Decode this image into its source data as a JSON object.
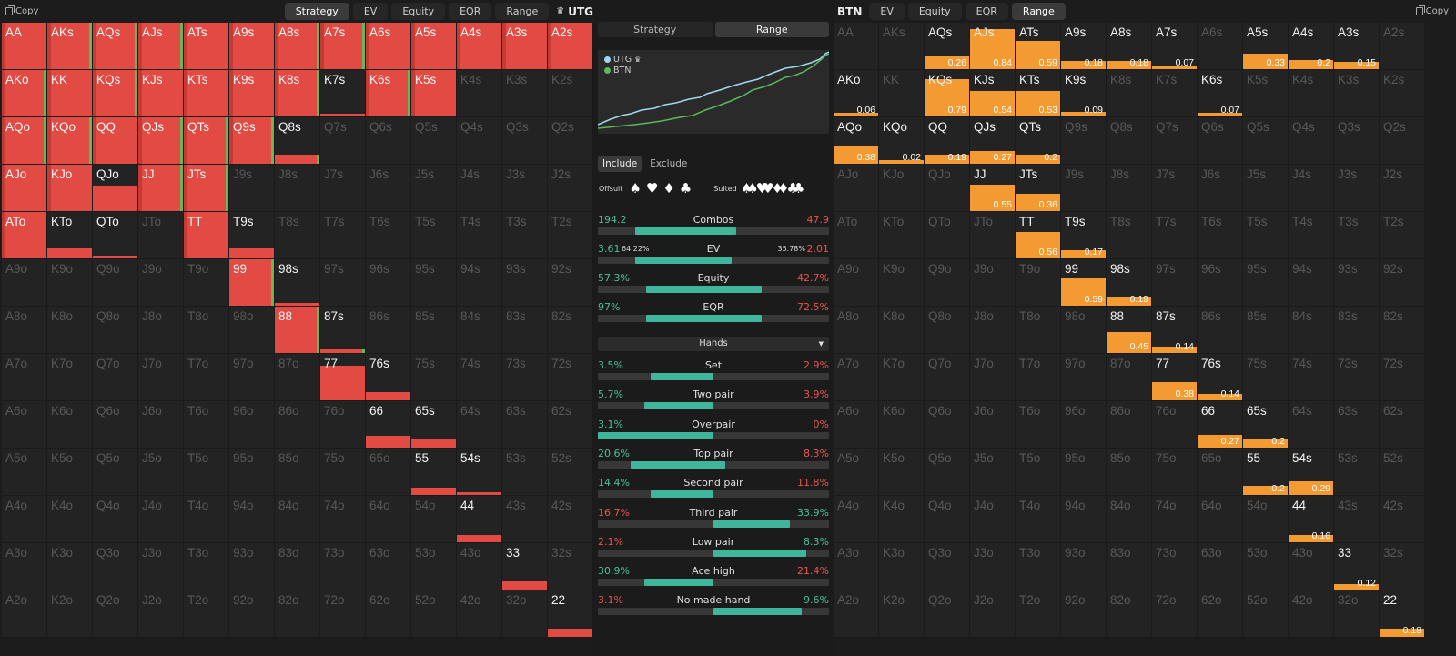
{
  "left": {
    "copy_label": "Copy",
    "tabs": [
      "Strategy",
      "EV",
      "Equity",
      "EQR",
      "Range"
    ],
    "active_tab": "Strategy",
    "position": "UTG"
  },
  "right": {
    "position": "BTN",
    "tabs": [
      "EV",
      "Equity",
      "EQR",
      "Range"
    ],
    "active_tab": "Range",
    "copy_label": "Copy"
  },
  "middle": {
    "tabs": [
      "Strategy",
      "Range"
    ],
    "active_tab": "Range",
    "legend": [
      {
        "name": "UTG",
        "color": "#9fd8f0"
      },
      {
        "name": "BTN",
        "color": "#5cb85c"
      }
    ],
    "include_label": "Include",
    "exclude_label": "Exclude",
    "offsuit_label": "Offsuit",
    "suited_label": "Suited",
    "offsuit_suits": [
      "♠",
      "♥",
      "♦",
      "♣"
    ],
    "suited_suits": [
      "♠♠",
      "♥♥",
      "♦♦",
      "♣♣"
    ],
    "stats": [
      {
        "label": "Combos",
        "left": "194.2",
        "right": "47.9",
        "fill_start": 0.16,
        "fill_end": 0.6
      },
      {
        "label": "EV",
        "left": "3.61",
        "right": "2.01",
        "left_pct": "64.22%",
        "right_pct": "35.78%",
        "fill_start": 0.16,
        "fill_end": 0.58
      },
      {
        "label": "Equity",
        "left": "57.3%",
        "right": "42.7%",
        "fill_start": 0.21,
        "fill_end": 0.71
      },
      {
        "label": "EQR",
        "left": "97%",
        "right": "72.5%",
        "fill_start": 0.21,
        "fill_end": 0.71
      }
    ],
    "hands_label": "Hands",
    "hand_stats": [
      {
        "label": "Set",
        "left": "3.5%",
        "right": "2.9%",
        "left_color": "#4fbf9a",
        "right_color": "#e5564f",
        "fill_start": 0.23,
        "fill_end": 0.5
      },
      {
        "label": "Two pair",
        "left": "5.7%",
        "right": "3.9%",
        "left_color": "#4fbf9a",
        "right_color": "#e5564f",
        "fill_start": 0.2,
        "fill_end": 0.5
      },
      {
        "label": "Overpair",
        "left": "3.1%",
        "right": "0%",
        "left_color": "#4fbf9a",
        "right_color": "#e5564f",
        "fill_start": 0.0,
        "fill_end": 0.5
      },
      {
        "label": "Top pair",
        "left": "20.6%",
        "right": "8.3%",
        "left_color": "#4fbf9a",
        "right_color": "#e5564f",
        "fill_start": 0.14,
        "fill_end": 0.55
      },
      {
        "label": "Second pair",
        "left": "14.4%",
        "right": "11.8%",
        "left_color": "#4fbf9a",
        "right_color": "#e5564f",
        "fill_start": 0.23,
        "fill_end": 0.5
      },
      {
        "label": "Third pair",
        "left": "16.7%",
        "right": "33.9%",
        "left_color": "#e5564f",
        "right_color": "#4fbf9a",
        "fill_start": 0.5,
        "fill_end": 0.83
      },
      {
        "label": "Low pair",
        "left": "2.1%",
        "right": "8.3%",
        "left_color": "#e5564f",
        "right_color": "#4fbf9a",
        "fill_start": 0.5,
        "fill_end": 0.9
      },
      {
        "label": "Ace high",
        "left": "30.9%",
        "right": "21.4%",
        "left_color": "#4fbf9a",
        "right_color": "#e5564f",
        "fill_start": 0.2,
        "fill_end": 0.5
      },
      {
        "label": "No made hand",
        "left": "3.1%",
        "right": "9.6%",
        "left_color": "#e5564f",
        "right_color": "#4fbf9a",
        "fill_start": 0.5,
        "fill_end": 0.88
      }
    ]
  },
  "ranks": [
    "A",
    "K",
    "Q",
    "J",
    "T",
    "9",
    "8",
    "7",
    "6",
    "5",
    "4",
    "3",
    "2"
  ],
  "utg": {
    "full": [
      "AA",
      "AKs",
      "AQs",
      "AJs",
      "ATs",
      "A9s",
      "A8s",
      "A7s",
      "A6s",
      "A5s",
      "A4s",
      "A3s",
      "A2s",
      "AKo",
      "KK",
      "KQs",
      "KJs",
      "KTs",
      "K9s",
      "K8s",
      "K6s",
      "K5s",
      "AQo",
      "KQo",
      "QQ",
      "QJs",
      "QTs",
      "Q9s",
      "AJo",
      "KJo",
      "JJ",
      "JTs",
      "ATo",
      "TT"
    ],
    "partial": {
      "K7s": 0.05,
      "Q8s": 0.2,
      "QJo": 0.55,
      "KTo": 0.22,
      "QTo": 0.05,
      "T9s": 0.22,
      "99": 1,
      "98s": 0.05,
      "88": 1,
      "87s": 0.08,
      "77": 0.75,
      "76s": 0.18,
      "66": 0.25,
      "65s": 0.18,
      "55": 0.15,
      "54s": 0.05,
      "44": 0.15,
      "33": 0.18,
      "22": 0.18
    },
    "green": [
      "AKs",
      "AQs",
      "AJs",
      "A8s",
      "A7s",
      "AKo",
      "KQs",
      "K8s",
      "K6s",
      "AQo",
      "KQo",
      "QJs",
      "QTs",
      "Q9s",
      "Q8s",
      "JJ",
      "JTs",
      "99",
      "88",
      "87s"
    ]
  },
  "btn": {
    "AQs": 0.26,
    "AJs": 0.84,
    "ATs": 0.59,
    "A9s": 0.18,
    "A8s": 0.18,
    "A7s": 0.07,
    "A5s": 0.33,
    "A4s": 0.2,
    "A3s": 0.15,
    "AKo": 0.06,
    "KQs": 0.79,
    "KJs": 0.54,
    "KTs": 0.53,
    "K9s": 0.09,
    "K6s": 0.07,
    "AQo": 0.38,
    "KQo": 0.02,
    "QQ": 0.19,
    "QJs": 0.27,
    "QTs": 0.2,
    "JJ": 0.55,
    "JTs": 0.36,
    "TT": 0.56,
    "T9s": 0.17,
    "99": 0.59,
    "98s": 0.19,
    "88": 0.45,
    "87s": 0.14,
    "77": 0.38,
    "76s": 0.14,
    "66": 0.27,
    "65s": 0.2,
    "55": 0.2,
    "54s": 0.29,
    "44": 0.16,
    "33": 0.12,
    "22": 0.18
  }
}
